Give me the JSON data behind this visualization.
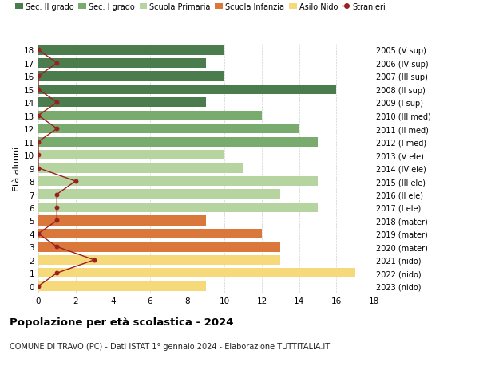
{
  "ages": [
    18,
    17,
    16,
    15,
    14,
    13,
    12,
    11,
    10,
    9,
    8,
    7,
    6,
    5,
    4,
    3,
    2,
    1,
    0
  ],
  "years": [
    "2005 (V sup)",
    "2006 (IV sup)",
    "2007 (III sup)",
    "2008 (II sup)",
    "2009 (I sup)",
    "2010 (III med)",
    "2011 (II med)",
    "2012 (I med)",
    "2013 (V ele)",
    "2014 (IV ele)",
    "2015 (III ele)",
    "2016 (II ele)",
    "2017 (I ele)",
    "2018 (mater)",
    "2019 (mater)",
    "2020 (mater)",
    "2021 (nido)",
    "2022 (nido)",
    "2023 (nido)"
  ],
  "bar_values": [
    10,
    9,
    10,
    16,
    9,
    12,
    14,
    15,
    10,
    11,
    15,
    13,
    15,
    9,
    12,
    13,
    13,
    17,
    9
  ],
  "bar_colors": [
    "#4a7c4e",
    "#4a7c4e",
    "#4a7c4e",
    "#4a7c4e",
    "#4a7c4e",
    "#7aab6e",
    "#7aab6e",
    "#7aab6e",
    "#b5d4a0",
    "#b5d4a0",
    "#b5d4a0",
    "#b5d4a0",
    "#b5d4a0",
    "#d9783a",
    "#d9783a",
    "#d9783a",
    "#f5d97a",
    "#f5d97a",
    "#f5d97a"
  ],
  "stranieri_values": [
    0,
    1,
    0,
    0,
    1,
    0,
    1,
    0,
    0,
    0,
    2,
    1,
    1,
    1,
    0,
    1,
    3,
    1,
    0
  ],
  "stranieri_color": "#9b2020",
  "legend_labels": [
    "Sec. II grado",
    "Sec. I grado",
    "Scuola Primaria",
    "Scuola Infanzia",
    "Asilo Nido",
    "Stranieri"
  ],
  "legend_colors": [
    "#4a7c4e",
    "#7aab6e",
    "#b5d4a0",
    "#d9783a",
    "#f5d97a",
    "#9b2020"
  ],
  "title": "Popolazione per età scolastica - 2024",
  "subtitle": "COMUNE DI TRAVO (PC) - Dati ISTAT 1° gennaio 2024 - Elaborazione TUTTITALIA.IT",
  "xlabel_left": "Età alunni",
  "background_color": "#ffffff"
}
